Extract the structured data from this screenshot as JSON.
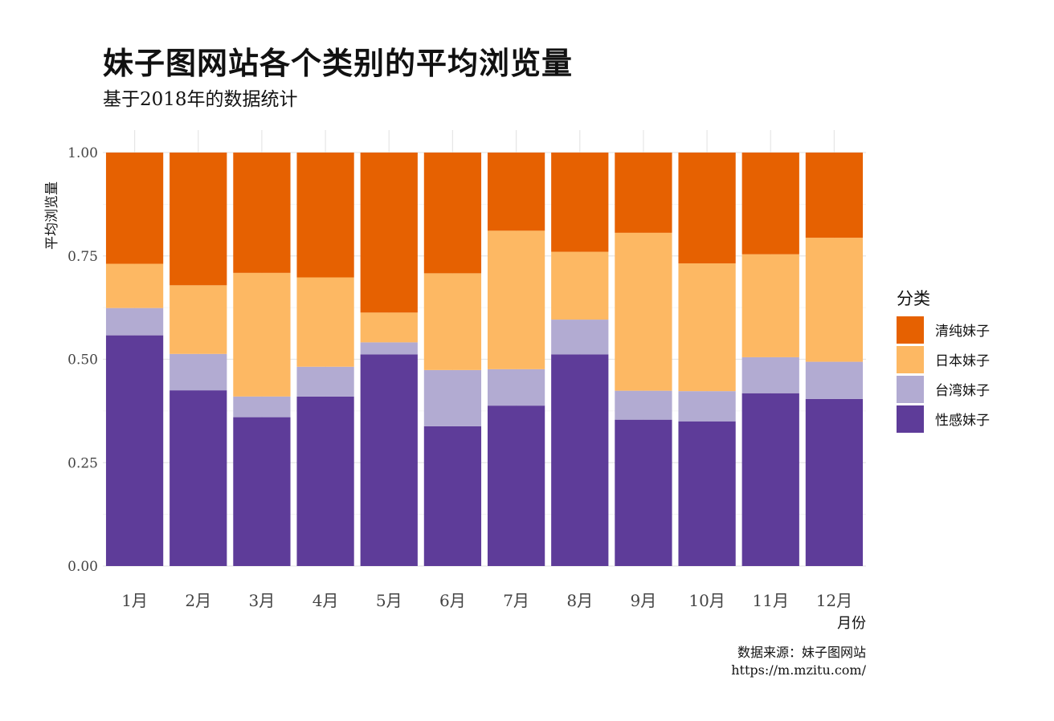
{
  "title": "妹子图网站各个类别的平均浏览量",
  "subtitle": "基于2018年的数据统计",
  "caption": {
    "line1": "数据来源：妹子图网站",
    "line2": "https://m.mzitu.com/"
  },
  "legend": {
    "title": "分类",
    "items": [
      {
        "label": "清纯妹子",
        "color": "#e66101"
      },
      {
        "label": "日本妹子",
        "color": "#fdb863"
      },
      {
        "label": "台湾妹子",
        "color": "#b2abd2"
      },
      {
        "label": "性感妹子",
        "color": "#5e3c99"
      }
    ]
  },
  "chart_data": {
    "type": "bar",
    "stacked": "fill",
    "xlabel": "月份",
    "ylabel": "平均浏览量",
    "ylim": [
      0,
      1
    ],
    "yticks": [
      "0.00",
      "0.25",
      "0.50",
      "0.75",
      "1.00"
    ],
    "categories": [
      "1月",
      "2月",
      "3月",
      "4月",
      "5月",
      "6月",
      "7月",
      "8月",
      "9月",
      "10月",
      "11月",
      "12月"
    ],
    "series": [
      {
        "name": "性感妹子",
        "color": "#5e3c99",
        "values": [
          0.558,
          0.425,
          0.36,
          0.41,
          0.512,
          0.338,
          0.388,
          0.512,
          0.354,
          0.35,
          0.418,
          0.404
        ]
      },
      {
        "name": "台湾妹子",
        "color": "#b2abd2",
        "values": [
          0.066,
          0.088,
          0.05,
          0.072,
          0.029,
          0.136,
          0.088,
          0.084,
          0.07,
          0.073,
          0.087,
          0.09
        ]
      },
      {
        "name": "日本妹子",
        "color": "#fdb863",
        "values": [
          0.107,
          0.166,
          0.299,
          0.216,
          0.072,
          0.234,
          0.335,
          0.164,
          0.382,
          0.309,
          0.249,
          0.3
        ]
      },
      {
        "name": "清纯妹子",
        "color": "#e66101",
        "values": [
          0.269,
          0.321,
          0.291,
          0.302,
          0.387,
          0.292,
          0.189,
          0.24,
          0.194,
          0.268,
          0.246,
          0.206
        ]
      }
    ],
    "grid": true,
    "legend_position": "right"
  }
}
